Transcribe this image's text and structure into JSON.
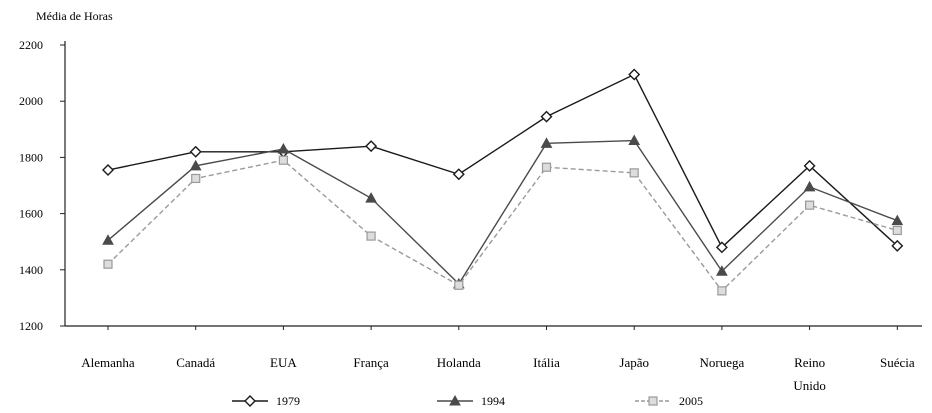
{
  "chart_data": {
    "type": "line",
    "title": "",
    "xlabel": "",
    "ylabel": "Média de Horas",
    "ylim": [
      1200,
      2200
    ],
    "yticks": [
      1200,
      1400,
      1600,
      1800,
      2000,
      2200
    ],
    "grid": false,
    "legend_position": "bottom",
    "categories": [
      "Alemanha",
      "Canadá",
      "EUA",
      "França",
      "Holanda",
      "Itália",
      "Japão",
      "Noruega",
      "Reino Unido",
      "Suécia"
    ],
    "series": [
      {
        "name": "1979",
        "values": [
          1755,
          1820,
          1820,
          1840,
          1740,
          1945,
          2095,
          1480,
          1770,
          1485
        ],
        "color": "#1a1a1a",
        "marker": "diamond",
        "dash": "solid"
      },
      {
        "name": "1994",
        "values": [
          1505,
          1770,
          1830,
          1655,
          1350,
          1850,
          1860,
          1395,
          1695,
          1575
        ],
        "color": "#4a4a4a",
        "marker": "triangle",
        "dash": "solid"
      },
      {
        "name": "2005",
        "values": [
          1420,
          1725,
          1790,
          1520,
          1345,
          1765,
          1745,
          1325,
          1630,
          1540
        ],
        "color": "#9a9a9a",
        "marker": "square",
        "dash": "dashed"
      }
    ]
  }
}
